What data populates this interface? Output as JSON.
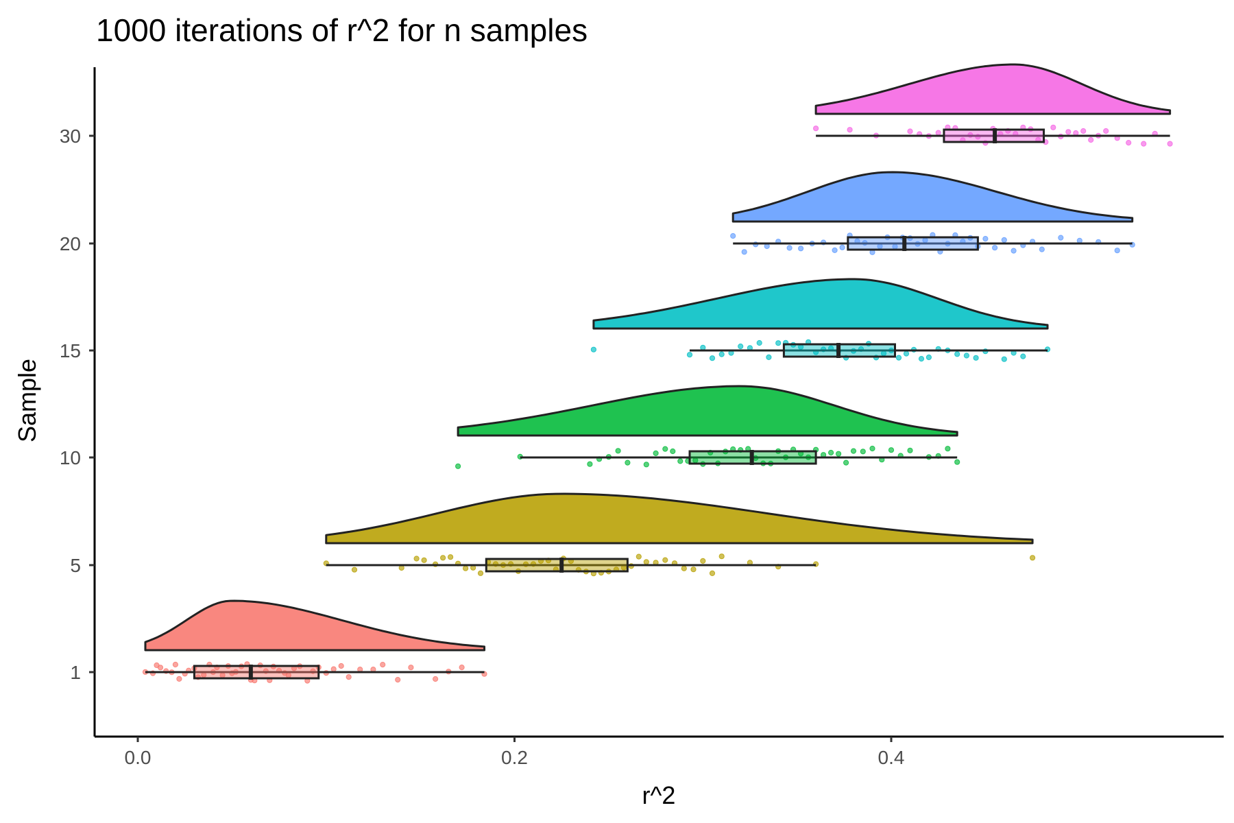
{
  "chart_data": {
    "type": "raincloud",
    "title": "1000 iterations of r^2 for n samples",
    "xlabel": "r^2",
    "ylabel": "Sample",
    "xlim": [
      -0.02,
      0.58
    ],
    "x_ticks": [
      0.0,
      0.2,
      0.4
    ],
    "x_tick_labels": [
      "0.0",
      "0.2",
      "0.4"
    ],
    "categories": [
      "1",
      "5",
      "10",
      "15",
      "20",
      "30"
    ],
    "grid": false,
    "legend": "none",
    "series": [
      {
        "sample": "1",
        "color": "#F8766D",
        "box": {
          "min": 0.004,
          "q1": 0.03,
          "median": 0.06,
          "q3": 0.096,
          "max": 0.184
        },
        "density": {
          "min": 0.004,
          "max": 0.184,
          "mode": 0.05
        },
        "points": [
          0.004,
          0.008,
          0.01,
          0.012,
          0.015,
          0.018,
          0.02,
          0.022,
          0.025,
          0.027,
          0.03,
          0.032,
          0.035,
          0.038,
          0.04,
          0.042,
          0.045,
          0.048,
          0.05,
          0.052,
          0.055,
          0.058,
          0.06,
          0.062,
          0.065,
          0.068,
          0.07,
          0.072,
          0.075,
          0.078,
          0.08,
          0.083,
          0.086,
          0.09,
          0.093,
          0.096,
          0.1,
          0.104,
          0.108,
          0.112,
          0.118,
          0.125,
          0.13,
          0.138,
          0.145,
          0.158,
          0.165,
          0.172,
          0.184
        ]
      },
      {
        "sample": "5",
        "color": "#B79F00",
        "box": {
          "min": 0.1,
          "q1": 0.185,
          "median": 0.225,
          "q3": 0.26,
          "max": 0.36
        },
        "density": {
          "min": 0.1,
          "max": 0.475,
          "mode": 0.225
        },
        "points": [
          0.1,
          0.115,
          0.14,
          0.148,
          0.152,
          0.158,
          0.162,
          0.166,
          0.17,
          0.174,
          0.178,
          0.182,
          0.186,
          0.19,
          0.194,
          0.198,
          0.202,
          0.206,
          0.21,
          0.214,
          0.218,
          0.222,
          0.226,
          0.23,
          0.234,
          0.238,
          0.242,
          0.246,
          0.25,
          0.254,
          0.258,
          0.262,
          0.266,
          0.27,
          0.275,
          0.28,
          0.285,
          0.29,
          0.295,
          0.3,
          0.305,
          0.31,
          0.325,
          0.34,
          0.36,
          0.475
        ]
      },
      {
        "sample": "10",
        "color": "#00BA38",
        "box": {
          "min": 0.203,
          "q1": 0.293,
          "median": 0.326,
          "q3": 0.36,
          "max": 0.435
        },
        "density": {
          "min": 0.17,
          "max": 0.435,
          "mode": 0.32
        },
        "points": [
          0.17,
          0.203,
          0.24,
          0.245,
          0.25,
          0.255,
          0.26,
          0.27,
          0.275,
          0.28,
          0.284,
          0.288,
          0.292,
          0.296,
          0.3,
          0.304,
          0.308,
          0.312,
          0.316,
          0.32,
          0.324,
          0.328,
          0.332,
          0.336,
          0.34,
          0.344,
          0.348,
          0.352,
          0.356,
          0.36,
          0.364,
          0.368,
          0.372,
          0.376,
          0.38,
          0.385,
          0.39,
          0.395,
          0.4,
          0.405,
          0.41,
          0.42,
          0.425,
          0.43,
          0.435
        ]
      },
      {
        "sample": "15",
        "color": "#00BFC4",
        "box": {
          "min": 0.293,
          "q1": 0.343,
          "median": 0.372,
          "q3": 0.402,
          "max": 0.483
        },
        "density": {
          "min": 0.242,
          "max": 0.483,
          "mode": 0.38
        },
        "points": [
          0.242,
          0.293,
          0.3,
          0.305,
          0.31,
          0.315,
          0.32,
          0.325,
          0.33,
          0.335,
          0.34,
          0.344,
          0.348,
          0.352,
          0.356,
          0.36,
          0.364,
          0.368,
          0.372,
          0.376,
          0.38,
          0.384,
          0.388,
          0.392,
          0.396,
          0.4,
          0.404,
          0.408,
          0.412,
          0.416,
          0.42,
          0.425,
          0.43,
          0.435,
          0.44,
          0.445,
          0.45,
          0.46,
          0.465,
          0.47,
          0.483
        ]
      },
      {
        "sample": "20",
        "color": "#619CFF",
        "box": {
          "min": 0.316,
          "q1": 0.377,
          "median": 0.407,
          "q3": 0.446,
          "max": 0.528
        },
        "density": {
          "min": 0.316,
          "max": 0.528,
          "mode": 0.4
        },
        "points": [
          0.316,
          0.322,
          0.328,
          0.334,
          0.34,
          0.346,
          0.352,
          0.358,
          0.364,
          0.37,
          0.374,
          0.378,
          0.382,
          0.386,
          0.39,
          0.394,
          0.398,
          0.402,
          0.406,
          0.41,
          0.414,
          0.418,
          0.422,
          0.426,
          0.43,
          0.434,
          0.438,
          0.442,
          0.446,
          0.45,
          0.455,
          0.46,
          0.465,
          0.47,
          0.475,
          0.48,
          0.49,
          0.5,
          0.51,
          0.52,
          0.528
        ]
      },
      {
        "sample": "30",
        "color": "#F564E3",
        "box": {
          "min": 0.36,
          "q1": 0.428,
          "median": 0.455,
          "q3": 0.481,
          "max": 0.548
        },
        "density": {
          "min": 0.36,
          "max": 0.548,
          "mode": 0.465
        },
        "points": [
          0.36,
          0.378,
          0.392,
          0.41,
          0.415,
          0.42,
          0.425,
          0.43,
          0.434,
          0.438,
          0.442,
          0.446,
          0.45,
          0.454,
          0.458,
          0.462,
          0.466,
          0.47,
          0.474,
          0.478,
          0.482,
          0.486,
          0.49,
          0.494,
          0.498,
          0.502,
          0.506,
          0.51,
          0.514,
          0.52,
          0.526,
          0.534,
          0.54,
          0.548
        ]
      }
    ]
  }
}
